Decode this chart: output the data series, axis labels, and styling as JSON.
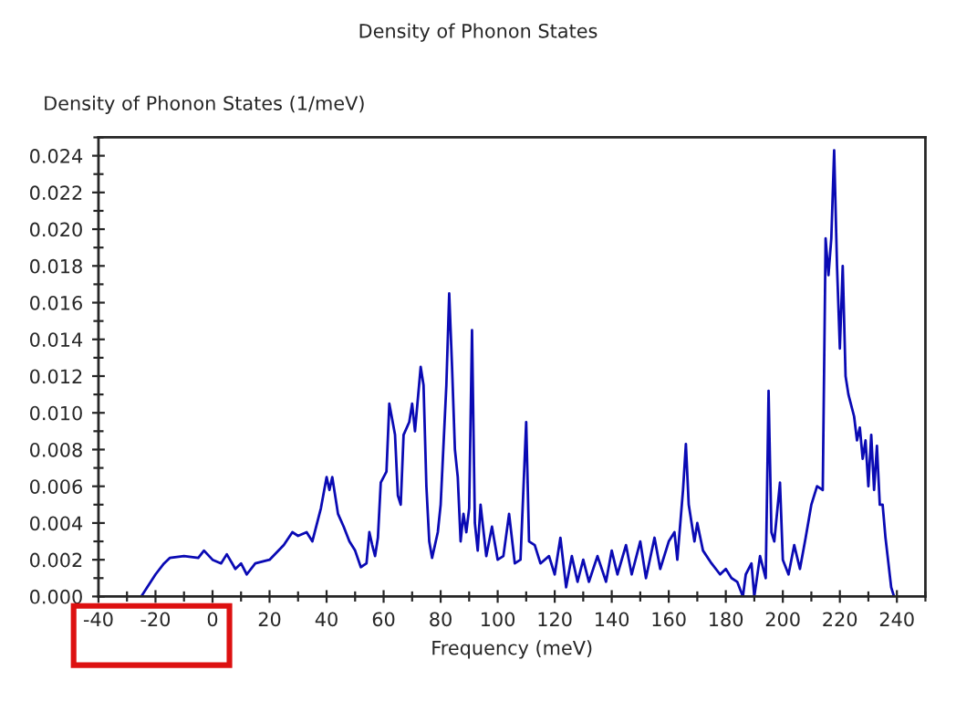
{
  "chart_data": {
    "type": "line",
    "title": "Density of Phonon States",
    "xlabel": "Frequency (meV)",
    "ylabel": "Density of Phonon States (1/meV)",
    "series": [
      {
        "color": "#0a0ab4",
        "x": [
          -40,
          -25,
          -20,
          -17,
          -15,
          -10,
          -5,
          -3,
          0,
          3,
          5,
          8,
          10,
          12,
          15,
          20,
          25,
          28,
          30,
          33,
          35,
          38,
          40,
          41,
          42,
          44,
          46,
          48,
          50,
          52,
          54,
          55,
          56,
          57,
          58,
          59,
          61,
          62,
          64,
          65,
          66,
          67,
          69,
          70,
          71,
          73,
          74,
          75,
          76,
          77,
          79,
          80,
          82,
          83,
          84,
          85,
          86,
          87,
          88,
          89,
          90,
          91,
          92,
          93,
          94,
          96,
          98,
          100,
          102,
          104,
          106,
          108,
          110,
          111,
          113,
          115,
          118,
          120,
          122,
          124,
          126,
          128,
          130,
          132,
          135,
          138,
          140,
          142,
          145,
          147,
          150,
          152,
          155,
          157,
          160,
          162,
          163,
          165,
          166,
          167,
          169,
          170,
          172,
          175,
          178,
          180,
          182,
          184,
          186,
          187,
          189,
          190,
          192,
          194,
          195,
          196,
          197,
          199,
          200,
          202,
          204,
          206,
          208,
          210,
          212,
          214,
          215,
          216,
          217,
          218,
          219,
          220,
          221,
          222,
          223,
          225,
          226,
          227,
          228,
          229,
          230,
          231,
          232,
          233,
          234,
          235,
          236,
          238,
          239,
          250
        ],
        "values": [
          0,
          0,
          0.0012,
          0.0018,
          0.0021,
          0.0022,
          0.0021,
          0.0025,
          0.002,
          0.0018,
          0.0023,
          0.0015,
          0.0018,
          0.0012,
          0.0018,
          0.002,
          0.0028,
          0.0035,
          0.0033,
          0.0035,
          0.003,
          0.0048,
          0.0065,
          0.0058,
          0.0065,
          0.0045,
          0.0038,
          0.003,
          0.0025,
          0.0016,
          0.0018,
          0.0035,
          0.0028,
          0.0022,
          0.0032,
          0.0062,
          0.0068,
          0.0105,
          0.0088,
          0.0055,
          0.005,
          0.0088,
          0.0095,
          0.0105,
          0.009,
          0.0125,
          0.0115,
          0.006,
          0.003,
          0.0021,
          0.0035,
          0.005,
          0.0115,
          0.0165,
          0.0125,
          0.008,
          0.0065,
          0.003,
          0.0045,
          0.0035,
          0.0048,
          0.0145,
          0.004,
          0.0025,
          0.005,
          0.0022,
          0.0038,
          0.002,
          0.0022,
          0.0045,
          0.0018,
          0.002,
          0.0095,
          0.003,
          0.0028,
          0.0018,
          0.0022,
          0.0012,
          0.0032,
          0.0005,
          0.0022,
          0.0008,
          0.002,
          0.0008,
          0.0022,
          0.0008,
          0.0025,
          0.0012,
          0.0028,
          0.0012,
          0.003,
          0.001,
          0.0032,
          0.0015,
          0.003,
          0.0035,
          0.002,
          0.0058,
          0.0083,
          0.005,
          0.003,
          0.004,
          0.0025,
          0.0018,
          0.0012,
          0.0015,
          0.001,
          0.0008,
          0,
          0.0012,
          0.0018,
          0,
          0.0022,
          0.001,
          0.0112,
          0.0035,
          0.003,
          0.0062,
          0.002,
          0.0012,
          0.0028,
          0.0015,
          0.0032,
          0.005,
          0.006,
          0.0058,
          0.0195,
          0.0175,
          0.0195,
          0.0243,
          0.018,
          0.0135,
          0.018,
          0.012,
          0.011,
          0.0098,
          0.0085,
          0.0092,
          0.0075,
          0.0085,
          0.006,
          0.0088,
          0.0058,
          0.0082,
          0.005,
          0.005,
          0.0032,
          0.0005,
          0,
          0
        ]
      }
    ],
    "xlim": [
      -40,
      250
    ],
    "xticks": [
      -40,
      -20,
      0,
      20,
      40,
      60,
      80,
      100,
      120,
      140,
      160,
      180,
      200,
      220,
      240
    ],
    "ylim": [
      0,
      0.025
    ],
    "yticks": [
      {
        "value": 0,
        "label": "0.000"
      },
      {
        "value": 0.002,
        "label": "0.002"
      },
      {
        "value": 0.004,
        "label": "0.004"
      },
      {
        "value": 0.006,
        "label": "0.006"
      },
      {
        "value": 0.008,
        "label": "0.008"
      },
      {
        "value": 0.01,
        "label": "0.010"
      },
      {
        "value": 0.012,
        "label": "0.012"
      },
      {
        "value": 0.014,
        "label": "0.014"
      },
      {
        "value": 0.016,
        "label": "0.016"
      },
      {
        "value": 0.018,
        "label": "0.018"
      },
      {
        "value": 0.02,
        "label": "0.020"
      },
      {
        "value": 0.022,
        "label": "0.022"
      },
      {
        "value": 0.024,
        "label": "0.024"
      }
    ],
    "grid": false,
    "marker": "none",
    "line_style": "solid"
  }
}
